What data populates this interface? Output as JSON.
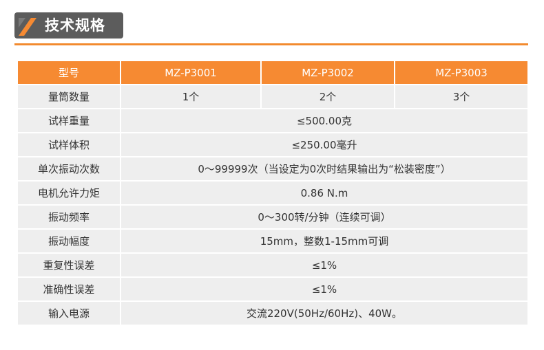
{
  "section": {
    "title": "技术规格"
  },
  "colors": {
    "accent": "#f68a32",
    "banner_bg": "#5c5c5c",
    "row_bg": "#eeeeee"
  },
  "table": {
    "header": [
      "型号",
      "MZ-P3001",
      "MZ-P3002",
      "MZ-P3003"
    ],
    "rows": [
      {
        "label": "量筒数量",
        "values": [
          "1个",
          "2个",
          "3个"
        ]
      },
      {
        "label": "试样重量",
        "value": "≤500.00克"
      },
      {
        "label": "试样体积",
        "value": "≤250.00毫升"
      },
      {
        "label": "单次振动次数",
        "value": "0～99999次（当设定为0次时结果输出为“松装密度”）"
      },
      {
        "label": "电机允许力矩",
        "value": "0.86 N.m"
      },
      {
        "label": "振动频率",
        "value": "0～300转/分钟（连续可调）"
      },
      {
        "label": "振动幅度",
        "value": "15mm，整数1-15mm可调"
      },
      {
        "label": "重复性误差",
        "value": "≤1%"
      },
      {
        "label": "准确性误差",
        "value": "≤1%"
      },
      {
        "label": "输入电源",
        "value": "交流220V(50Hz/60Hz)、40W。"
      }
    ]
  }
}
